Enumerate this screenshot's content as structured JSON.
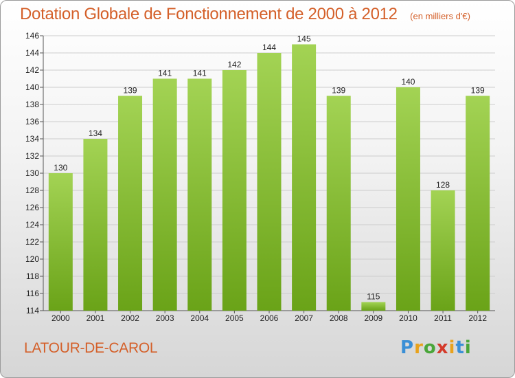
{
  "header": {
    "title": "Dotation Globale de Fonctionnement de 2000 à 2012",
    "unit": "(en milliers d'€)"
  },
  "commune": "LATOUR-DE-CAROL",
  "logo": {
    "letters": [
      "P",
      "r",
      "o",
      "x",
      "i",
      "t",
      "i"
    ],
    "colors": [
      "#3a8fd6",
      "#e8a21c",
      "#4aa63a",
      "#d43a2a",
      "#e8a21c",
      "#3a8fd6",
      "#4aa63a"
    ]
  },
  "colors": {
    "bar_light": "#a3d354",
    "bar_dark": "#6aa318",
    "grid": "#cccccc"
  },
  "chart_data": {
    "type": "bar",
    "title": "Dotation Globale de Fonctionnement de 2000 à 2012",
    "subtitle": "(en milliers d'€)",
    "xlabel": "",
    "ylabel": "",
    "categories": [
      "2000",
      "2001",
      "2002",
      "2003",
      "2004",
      "2005",
      "2006",
      "2007",
      "2008",
      "2009",
      "2010",
      "2011",
      "2012"
    ],
    "values": [
      130,
      134,
      139,
      141,
      141,
      142,
      144,
      145,
      139,
      115,
      140,
      128,
      139
    ],
    "ylim": [
      114,
      146
    ],
    "yticks": [
      114,
      116,
      118,
      120,
      122,
      124,
      126,
      128,
      130,
      132,
      134,
      136,
      138,
      140,
      142,
      144,
      146
    ],
    "grid": true,
    "data_labels": true
  }
}
